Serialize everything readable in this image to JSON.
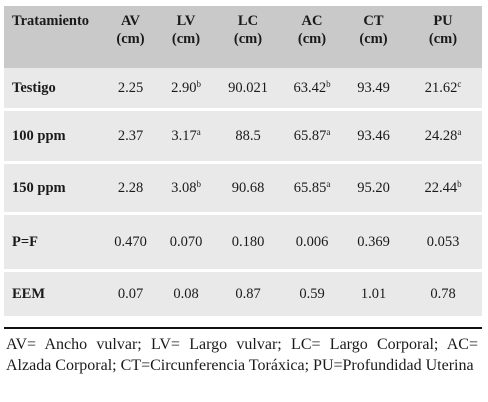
{
  "table": {
    "headers": [
      {
        "line1": "Tratamiento",
        "line2": ""
      },
      {
        "line1": "AV",
        "line2": "(cm)"
      },
      {
        "line1": "LV",
        "line2": "(cm)"
      },
      {
        "line1": "LC",
        "line2": "(cm)"
      },
      {
        "line1": "AC",
        "line2": "(cm)"
      },
      {
        "line1": "CT",
        "line2": "(cm)"
      },
      {
        "line1": "PU",
        "line2": "(cm)"
      }
    ],
    "rows": [
      {
        "label": "Testigo",
        "cells": [
          {
            "v": "2.25",
            "s": ""
          },
          {
            "v": "2.90",
            "s": "b"
          },
          {
            "v": "90.021",
            "s": ""
          },
          {
            "v": "63.42",
            "s": "b"
          },
          {
            "v": "93.49",
            "s": ""
          },
          {
            "v": "21.62",
            "s": "c"
          }
        ]
      },
      {
        "label": "100 ppm",
        "cells": [
          {
            "v": "2.37",
            "s": ""
          },
          {
            "v": "3.17",
            "s": "a"
          },
          {
            "v": "88.5",
            "s": ""
          },
          {
            "v": "65.87",
            "s": "a"
          },
          {
            "v": "93.46",
            "s": ""
          },
          {
            "v": "24.28",
            "s": "a"
          }
        ]
      },
      {
        "label": "150 ppm",
        "cells": [
          {
            "v": "2.28",
            "s": ""
          },
          {
            "v": "3.08",
            "s": "b"
          },
          {
            "v": "90.68",
            "s": ""
          },
          {
            "v": "65.85",
            "s": "a"
          },
          {
            "v": "95.20",
            "s": ""
          },
          {
            "v": "22.44",
            "s": "b"
          }
        ]
      },
      {
        "label": "P=F",
        "cells": [
          {
            "v": "0.470",
            "s": ""
          },
          {
            "v": "0.070",
            "s": ""
          },
          {
            "v": "0.180",
            "s": ""
          },
          {
            "v": "0.006",
            "s": ""
          },
          {
            "v": "0.369",
            "s": ""
          },
          {
            "v": "0.053",
            "s": ""
          }
        ]
      },
      {
        "label": "EEM",
        "cells": [
          {
            "v": "0.07",
            "s": ""
          },
          {
            "v": "0.08",
            "s": ""
          },
          {
            "v": "0.87",
            "s": ""
          },
          {
            "v": "0.59",
            "s": ""
          },
          {
            "v": "1.01",
            "s": ""
          },
          {
            "v": "0.78",
            "s": ""
          }
        ]
      }
    ]
  },
  "footnote": "AV= Ancho vulvar; LV= Largo vulvar; LC= Largo Corporal; AC= Alzada Corporal; CT=Circunferencia Toráxica; PU=Profundidad Uterina",
  "colors": {
    "header_bg": "#c9c9c9",
    "row_bg": "#e9e9e9"
  }
}
